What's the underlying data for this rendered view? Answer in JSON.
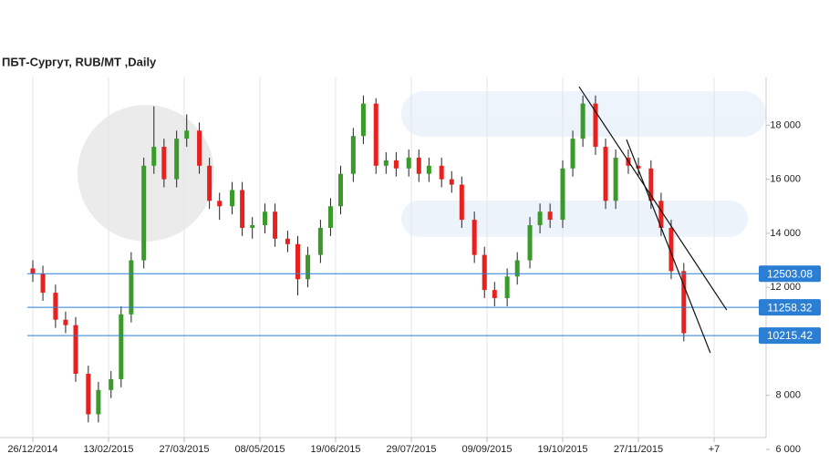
{
  "chart_data": {
    "type": "candlestick",
    "title": "ПБТ-Сургут,  RUB/MT ,Daily",
    "xlim": [
      -13,
      290.6
    ],
    "ylim": [
      6000,
      19800
    ],
    "xticks": [
      {
        "value": 0,
        "label": "26/12/2014"
      },
      {
        "value": 30,
        "label": "13/02/2015"
      },
      {
        "value": 60,
        "label": "27/03/2015"
      },
      {
        "value": 90,
        "label": "08/05/2015"
      },
      {
        "value": 120,
        "label": "19/06/2015"
      },
      {
        "value": 150,
        "label": "29/07/2015"
      },
      {
        "value": 180,
        "label": "09/09/2015"
      },
      {
        "value": 210,
        "label": "19/10/2015"
      },
      {
        "value": 240,
        "label": "27/11/2015"
      },
      {
        "value": 270,
        "label": "+7"
      }
    ],
    "yticks": [
      {
        "value": 6000,
        "label": "6 000"
      },
      {
        "value": 8000,
        "label": "8 000"
      },
      {
        "value": 12000,
        "label": "12 000"
      },
      {
        "value": 14000,
        "label": "14 000"
      },
      {
        "value": 16000,
        "label": "16 000"
      },
      {
        "value": 18000,
        "label": "18 000"
      }
    ],
    "grid": true,
    "up_color": "#3a9a2a",
    "down_color": "#e8201e",
    "candles": {
      "x": [
        0,
        4,
        9,
        13,
        17,
        22,
        26,
        31,
        35,
        39,
        44,
        48,
        52,
        57,
        61,
        66,
        70,
        74,
        79,
        83,
        87,
        92,
        96,
        101,
        105,
        109,
        114,
        118,
        122,
        127,
        131,
        136,
        140,
        144,
        149,
        153,
        157,
        162,
        166,
        170,
        175,
        179,
        183,
        188,
        192,
        197,
        201,
        205,
        210,
        214,
        218,
        223,
        227,
        231,
        236,
        240,
        245,
        249,
        253,
        258
      ],
      "open": [
        12700,
        12500,
        11800,
        10800,
        10600,
        8800,
        7300,
        8200,
        8600,
        11000,
        13000,
        16500,
        17200,
        16000,
        17500,
        17800,
        16500,
        15200,
        15000,
        15600,
        14200,
        14300,
        14800,
        13800,
        13600,
        12300,
        13200,
        14200,
        15000,
        16200,
        17600,
        18800,
        16500,
        16700,
        16400,
        16800,
        16200,
        16500,
        16000,
        15800,
        14500,
        13200,
        11900,
        11600,
        12400,
        13000,
        14300,
        14800,
        14500,
        16400,
        17500,
        18800,
        17200,
        15200,
        16800,
        16500,
        16400,
        15200,
        14200,
        12600
      ],
      "high": [
        13000,
        12800,
        12100,
        11100,
        10900,
        9100,
        8500,
        8900,
        11300,
        13300,
        16800,
        18700,
        17500,
        17800,
        18400,
        18100,
        16800,
        15500,
        15900,
        15900,
        14600,
        15100,
        15100,
        14100,
        13900,
        13500,
        14500,
        15300,
        16500,
        17900,
        19100,
        19000,
        17000,
        17000,
        17100,
        17100,
        16800,
        16800,
        16300,
        16100,
        14800,
        13500,
        12200,
        12700,
        13300,
        14600,
        15100,
        15100,
        16700,
        17800,
        19100,
        19100,
        17500,
        17100,
        17100,
        16800,
        16700,
        15500,
        14500,
        12900
      ],
      "low": [
        12200,
        11500,
        10500,
        10300,
        8500,
        7000,
        7000,
        7900,
        8300,
        10700,
        12700,
        16200,
        15700,
        15700,
        17200,
        16200,
        14900,
        14500,
        14700,
        13900,
        13800,
        14000,
        13500,
        13300,
        11700,
        12000,
        12900,
        13900,
        14700,
        15900,
        17300,
        16200,
        16200,
        16100,
        16100,
        15900,
        15900,
        15700,
        15500,
        14200,
        12900,
        11600,
        11300,
        11300,
        12100,
        12700,
        14000,
        14200,
        14200,
        16100,
        17200,
        16900,
        14900,
        14900,
        16200,
        16100,
        14900,
        13900,
        12300,
        10000
      ],
      "close": [
        12500,
        11800,
        10800,
        10600,
        8800,
        7300,
        8200,
        8600,
        11000,
        13000,
        16500,
        17200,
        16000,
        17500,
        17800,
        16500,
        15200,
        15000,
        15600,
        14200,
        14300,
        14800,
        13800,
        13600,
        12300,
        13200,
        14200,
        15000,
        16200,
        17600,
        18800,
        16500,
        16700,
        16400,
        16800,
        16200,
        16500,
        16000,
        15800,
        14500,
        13200,
        11900,
        11600,
        12400,
        13000,
        14300,
        14800,
        14500,
        16400,
        17500,
        18800,
        17200,
        15200,
        16800,
        16500,
        16400,
        15200,
        14200,
        12600,
        10300
      ]
    },
    "levels": {
      "color": "#2a7fd4",
      "values": [
        12503.08,
        11258.32,
        10215.42
      ]
    },
    "trendlines": {
      "color": "#111111",
      "lines": [
        {
          "x": [
            216.5,
            275
          ],
          "y": [
            19423,
            11160
          ]
        },
        {
          "x": [
            235.3,
            268.5
          ],
          "y": [
            17467,
            9575
          ]
        }
      ]
    }
  }
}
